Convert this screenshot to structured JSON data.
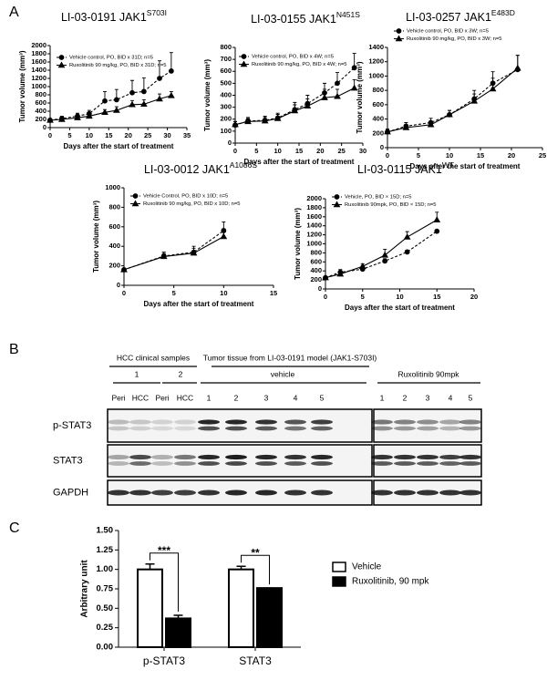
{
  "panel_labels": [
    "A",
    "B",
    "C"
  ],
  "chart_data": [
    {
      "type": "line",
      "title": "LI-03-0191 JAK1",
      "title_sup": "S703I",
      "ylabel": "Tumor volume (mm³)",
      "xlabel": "Days after the start of treatment",
      "x": [
        0,
        3,
        7,
        10,
        14,
        17,
        21,
        24,
        28,
        31
      ],
      "xlim": [
        0,
        35
      ],
      "xticks": [
        0,
        5,
        10,
        15,
        20,
        25,
        30,
        35
      ],
      "ylim": [
        0,
        2000
      ],
      "yticks": [
        0,
        200,
        400,
        600,
        800,
        1000,
        1200,
        1400,
        1600,
        1800,
        2000
      ],
      "series": [
        {
          "name": "Vehicle control, PO, BID x 31D; n=5",
          "color": "#000000",
          "style": "dashed",
          "marker": "circle",
          "values": [
            180,
            220,
            280,
            340,
            650,
            680,
            850,
            880,
            1200,
            1380
          ],
          "errors": [
            40,
            60,
            70,
            80,
            230,
            250,
            300,
            330,
            430,
            450
          ]
        },
        {
          "name": "Ruxolitinib 90 mg/kg, PO, BID x 31D; n=5",
          "color": "#000000",
          "style": "solid",
          "marker": "triangle",
          "values": [
            180,
            200,
            240,
            280,
            370,
            420,
            560,
            570,
            700,
            780
          ],
          "errors": [
            40,
            40,
            50,
            60,
            70,
            90,
            100,
            110,
            120,
            100
          ]
        }
      ]
    },
    {
      "type": "line",
      "title": "LI-03-0155 JAK1",
      "title_sup": "N451S",
      "ylabel": "Tumor volume (mm³)",
      "xlabel": "Days after the start of treatment",
      "x": [
        0,
        3,
        7,
        10,
        14,
        17,
        21,
        24,
        28
      ],
      "xlim": [
        0,
        30
      ],
      "xticks": [
        0,
        5,
        10,
        15,
        20,
        25,
        30
      ],
      "ylim": [
        0,
        800
      ],
      "yticks": [
        0,
        100,
        200,
        300,
        400,
        500,
        600,
        700,
        800
      ],
      "series": [
        {
          "name": "Vehicle control, PO, BID x 4W; n=5",
          "color": "#000000",
          "style": "dashed",
          "marker": "circle",
          "values": [
            150,
            185,
            190,
            210,
            280,
            330,
            420,
            500,
            630
          ],
          "errors": [
            30,
            30,
            35,
            40,
            60,
            70,
            80,
            90,
            120
          ]
        },
        {
          "name": "Ruxolitinib 90 mg/kg, PO, BID x 4W; n=5",
          "color": "#000000",
          "style": "solid",
          "marker": "triangle",
          "values": [
            155,
            180,
            185,
            205,
            270,
            310,
            380,
            390,
            460
          ],
          "errors": [
            25,
            25,
            30,
            35,
            50,
            60,
            70,
            60,
            70
          ]
        }
      ]
    },
    {
      "type": "line",
      "title": "LI-03-0257 JAK1",
      "title_sup": "E483D",
      "ylabel": "Tumor volume (mm³)",
      "xlabel": "Days after the start of treatment",
      "x": [
        0,
        3,
        7,
        10,
        14,
        17,
        21
      ],
      "xlim": [
        0,
        25
      ],
      "xticks": [
        0,
        5,
        10,
        15,
        20,
        25
      ],
      "ylim": [
        0,
        1400
      ],
      "yticks": [
        0,
        200,
        400,
        600,
        800,
        1000,
        1200,
        1400
      ],
      "series": [
        {
          "name": "Vehicle control, PO, BID x 3W; n=5",
          "color": "#000000",
          "style": "dashed",
          "marker": "circle",
          "values": [
            220,
            300,
            350,
            460,
            680,
            900,
            1090
          ],
          "errors": [
            40,
            50,
            60,
            60,
            120,
            160,
            200
          ]
        },
        {
          "name": "Ruxolitinib 90 mg/kg, PO, BID x 3W; n=5",
          "color": "#000000",
          "style": "solid",
          "marker": "triangle",
          "values": [
            220,
            280,
            320,
            460,
            650,
            820,
            1110
          ],
          "errors": [
            30,
            40,
            50,
            60,
            100,
            150,
            180
          ]
        }
      ]
    },
    {
      "type": "line",
      "title": "LI-03-0012 JAK1",
      "title_sup": "A1086S",
      "ylabel": "Tumor volume (mm³)",
      "xlabel": "Days after the start of treatment",
      "x": [
        0,
        4,
        7,
        10
      ],
      "xlim": [
        0,
        15
      ],
      "xticks": [
        0,
        5,
        10,
        15
      ],
      "ylim": [
        0,
        1000
      ],
      "yticks": [
        0,
        200,
        400,
        600,
        800,
        1000
      ],
      "series": [
        {
          "name": "Vehicle Control, PO, BID x 10D; n=5",
          "color": "#000000",
          "style": "dashed",
          "marker": "circle",
          "values": [
            160,
            300,
            340,
            560
          ],
          "errors": [
            0,
            40,
            60,
            90
          ]
        },
        {
          "name": "Ruxolitinib 90 mg/kg, PO, BID x 10D; n=5",
          "color": "#000000",
          "style": "solid",
          "marker": "triangle",
          "values": [
            160,
            295,
            330,
            500
          ],
          "errors": [
            0,
            30,
            50,
            80
          ]
        }
      ]
    },
    {
      "type": "line",
      "title": "LI-03-0115 JAK1",
      "title_sup": "WT",
      "ylabel": "Tumor volume (mm³)",
      "xlabel": "Days after the start of treatment",
      "x": [
        0,
        2,
        5,
        8,
        11,
        15
      ],
      "xlim": [
        0,
        20
      ],
      "xticks": [
        0,
        5,
        10,
        15,
        20
      ],
      "ylim": [
        0,
        2000
      ],
      "yticks": [
        0,
        200,
        400,
        600,
        800,
        1000,
        1200,
        1400,
        1600,
        1800,
        2000
      ],
      "series": [
        {
          "name": "Vehicle, PO, BID × 15D; n=5",
          "color": "#000000",
          "style": "dashed",
          "marker": "circle",
          "values": [
            250,
            370,
            440,
            620,
            820,
            1280
          ],
          "errors": [
            0,
            60,
            70,
            50,
            40,
            0
          ]
        },
        {
          "name": "Ruxolitinib 90mpk, PO, BID × 15D; n=5",
          "color": "#000000",
          "style": "solid",
          "marker": "triangle",
          "values": [
            250,
            330,
            500,
            750,
            1150,
            1530
          ],
          "errors": [
            0,
            50,
            60,
            130,
            120,
            170
          ]
        }
      ]
    },
    {
      "type": "bar",
      "ylabel": "Arbitrary unit",
      "categories": [
        "p-STAT3",
        "STAT3"
      ],
      "annotations": [
        "***",
        "**"
      ],
      "ylim": [
        0,
        1.5
      ],
      "yticks": [
        {
          "value": 0,
          "label": "0.00"
        },
        {
          "value": 0.25,
          "label": "0.25"
        },
        {
          "value": 0.5,
          "label": "0.50"
        },
        {
          "value": 0.75,
          "label": "0.75"
        },
        {
          "value": 1,
          "label": "1.00"
        },
        {
          "value": 1.25,
          "label": "1.25"
        },
        {
          "value": 1.5,
          "label": "1.50"
        }
      ],
      "series": [
        {
          "name": "Vehicle",
          "color": "#ffffff",
          "values": [
            1.0,
            1.0
          ],
          "errors": [
            0.07,
            0.04
          ]
        },
        {
          "name": "Ruxolitinib, 90 mpk",
          "color": "#000000",
          "values": [
            0.37,
            0.76
          ],
          "errors": [
            0.04,
            0
          ]
        }
      ]
    }
  ],
  "blot": {
    "group_headers": [
      "HCC clinical samples",
      "Tumor tissue from LI-03-0191 model (JAK1-S703I)"
    ],
    "subgroups": [
      "1",
      "2",
      "vehicle",
      "Ruxolitinib 90mpk"
    ],
    "lanes": [
      "Peri",
      "HCC",
      "Peri",
      "HCC",
      "1",
      "2",
      "3",
      "4",
      "5",
      "1",
      "2",
      "3",
      "4",
      "5"
    ],
    "rows": [
      "p-STAT3",
      "STAT3",
      "GAPDH"
    ]
  }
}
